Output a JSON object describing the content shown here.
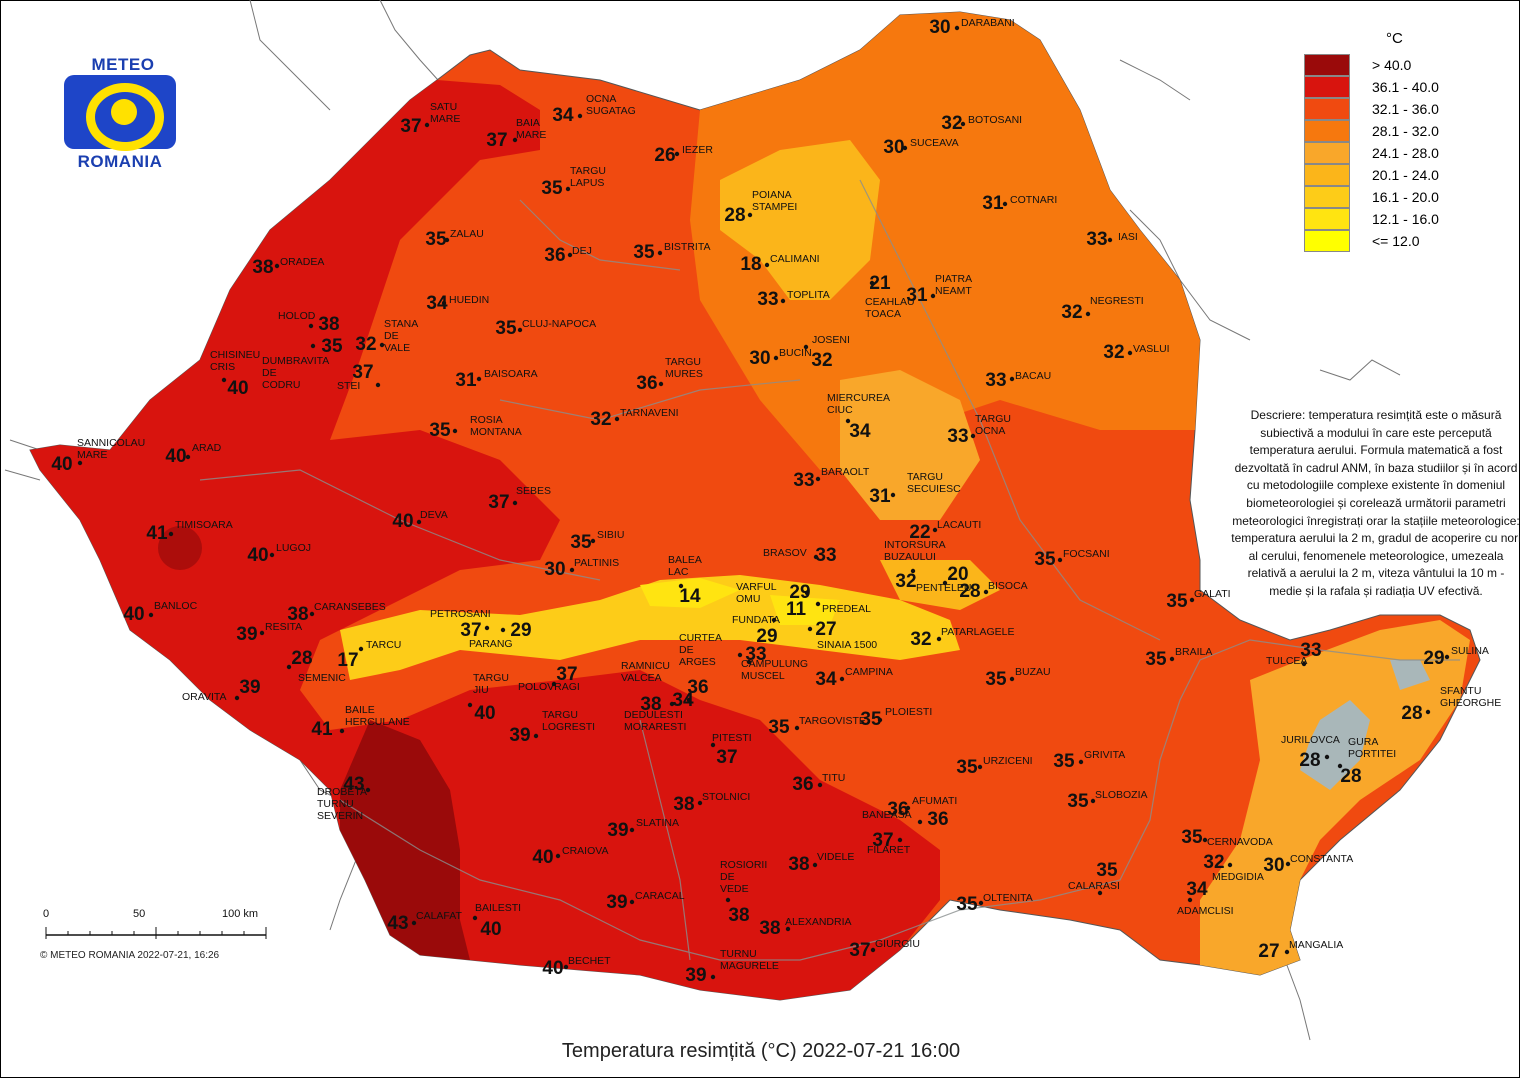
{
  "logo": {
    "top_text": "METEO",
    "bottom_text": "ROMANIA"
  },
  "legend": {
    "unit": "°C",
    "classes": [
      {
        "label": "> 40.0",
        "color": "#9a0a0a"
      },
      {
        "label": "36.1 - 40.0",
        "color": "#d8140e"
      },
      {
        "label": "32.1 - 36.0",
        "color": "#f04a10"
      },
      {
        "label": "28.1 - 32.0",
        "color": "#f6780e"
      },
      {
        "label": "24.1 - 28.0",
        "color": "#f9a72a"
      },
      {
        "label": "20.1 - 24.0",
        "color": "#fbb51a"
      },
      {
        "label": "16.1 - 20.0",
        "color": "#fdcc18"
      },
      {
        "label": "12.1 - 16.0",
        "color": "#ffe411"
      },
      {
        "label": "<= 12.0",
        "color": "#ffff00"
      }
    ]
  },
  "description": "Descriere: temperatura resimțită este o măsură subiectivă a modului în care este percepută temperatura aerului. Formula matematică a fost dezvoltată în cadrul ANM, în baza studiilor și în acord cu metodologiile complexe existente în domeniul biometeorologiei și corelează următorii parametri meteorologici înregistrați orar la stațiile meteorologice: temperatura aerului la 2 m, gradul de acoperire cu nori al cerului, fenomenele meteorologice, umezeala relativă a aerului la 2 m, viteza vântului la 10 m - medie și la rafala și radiația UV efectivă.",
  "scale": {
    "labels": [
      "0",
      "50",
      "100 km"
    ]
  },
  "copyright": "© METEO ROMANIA 2022-07-21, 16:26",
  "title": "Temperatura resimțită (°C) 2022-07-21 16:00",
  "stations": [
    {
      "name": "DARABANI",
      "value": "30"
    },
    {
      "name": "BOTOSANI",
      "value": "32"
    },
    {
      "name": "SUCEAVA",
      "value": "30"
    },
    {
      "name": "COTNARI",
      "value": "31"
    },
    {
      "name": "IASI",
      "value": "33"
    },
    {
      "name": "PIATRA NEAMT",
      "value": "31"
    },
    {
      "name": "NEGRESTI",
      "value": "32"
    },
    {
      "name": "VASLUI",
      "value": "32"
    },
    {
      "name": "BACAU",
      "value": "33"
    },
    {
      "name": "TARGU OCNA",
      "value": "33"
    },
    {
      "name": "SATU MARE",
      "value": "37"
    },
    {
      "name": "BAIA MARE",
      "value": "37"
    },
    {
      "name": "OCNA SUGATAG",
      "value": "34"
    },
    {
      "name": "IEZER",
      "value": "26"
    },
    {
      "name": "TARGU LAPUS",
      "value": "35"
    },
    {
      "name": "POIANA STAMPEI",
      "value": "28"
    },
    {
      "name": "ZALAU",
      "value": "35"
    },
    {
      "name": "DEJ",
      "value": "36"
    },
    {
      "name": "BISTRITA",
      "value": "35"
    },
    {
      "name": "CALIMANI",
      "value": "18"
    },
    {
      "name": "CEAHLAU TOACA",
      "value": "21"
    },
    {
      "name": "ORADEA",
      "value": "38"
    },
    {
      "name": "HUEDIN",
      "value": "34"
    },
    {
      "name": "TOPLITA",
      "value": "33"
    },
    {
      "name": "HOLOD",
      "value": "38"
    },
    {
      "name": "CLUJ-NAPOCA",
      "value": "35"
    },
    {
      "name": "DUMBRAVITA DE CODRU",
      "value": "35"
    },
    {
      "name": "STANA DE VALE",
      "value": "32"
    },
    {
      "name": "JOSENI",
      "value": "32"
    },
    {
      "name": "BUCIN",
      "value": "30"
    },
    {
      "name": "CHISINEU CRIS",
      "value": "40"
    },
    {
      "name": "STEI",
      "value": "37"
    },
    {
      "name": "BAISOARA",
      "value": "31"
    },
    {
      "name": "TARGU MURES",
      "value": "36"
    },
    {
      "name": "MIERCUREA CIUC",
      "value": "34"
    },
    {
      "name": "TARNAVENI",
      "value": "32"
    },
    {
      "name": "ROSIA MONTANA",
      "value": "35"
    },
    {
      "name": "SANNICOLAU MARE",
      "value": "40"
    },
    {
      "name": "ARAD",
      "value": "40"
    },
    {
      "name": "BARAOLT",
      "value": "33"
    },
    {
      "name": "TARGU SECUIESC",
      "value": "31"
    },
    {
      "name": "SEBES",
      "value": "37"
    },
    {
      "name": "DEVA",
      "value": "40"
    },
    {
      "name": "LACAUTI",
      "value": "22"
    },
    {
      "name": "TIMISOARA",
      "value": "41"
    },
    {
      "name": "SIBIU",
      "value": "35"
    },
    {
      "name": "BRASOV",
      "value": "33"
    },
    {
      "name": "LUGOJ",
      "value": "40"
    },
    {
      "name": "INTORSURA BUZAULUI",
      "value": "32"
    },
    {
      "name": "PENTELEU",
      "value": "20"
    },
    {
      "name": "FOCSANI",
      "value": "35"
    },
    {
      "name": "PALTINIS",
      "value": "30"
    },
    {
      "name": "BALEA LAC",
      "value": "14"
    },
    {
      "name": "VARFUL OMU",
      "value": "29"
    },
    {
      "name": "BISOCA",
      "value": "28"
    },
    {
      "name": "GALATI",
      "value": "35"
    },
    {
      "name": "BANLOC",
      "value": "40"
    },
    {
      "name": "CARANSEBES",
      "value": "38"
    },
    {
      "name": "PREDEAL",
      "value": "11"
    },
    {
      "name": "PETROSANI",
      "value": "37"
    },
    {
      "name": "PARANG",
      "value": "29"
    },
    {
      "name": "FUNDATA",
      "value": "29"
    },
    {
      "name": "SINAIA 1500",
      "value": "27"
    },
    {
      "name": "PATARLAGELE",
      "value": "32"
    },
    {
      "name": "RESITA",
      "value": "39"
    },
    {
      "name": "TULCEA",
      "value": "33"
    },
    {
      "name": "SULINA",
      "value": "29"
    },
    {
      "name": "TARCU",
      "value": "17"
    },
    {
      "name": "SEMENIC",
      "value": "28"
    },
    {
      "name": "CURTEA DE ARGES",
      "value": "33"
    },
    {
      "name": "BRAILA",
      "value": "35"
    },
    {
      "name": "POLOVRAGI",
      "value": "37"
    },
    {
      "name": "CAMPULUNG MUSCEL",
      "value": "36"
    },
    {
      "name": "CAMPINA",
      "value": "34"
    },
    {
      "name": "BUZAU",
      "value": "35"
    },
    {
      "name": "ORAVITA",
      "value": "39"
    },
    {
      "name": "TARGU JIU",
      "value": "40"
    },
    {
      "name": "RAMNICU VALCEA",
      "value": "38"
    },
    {
      "name": "SFANTU GHEORGHE",
      "value": "28"
    },
    {
      "name": "DEDULESTI MORARESTI",
      "value": "34"
    },
    {
      "name": "TARGOVISTE",
      "value": "35"
    },
    {
      "name": "PLOIESTI",
      "value": "35"
    },
    {
      "name": "BAILE HERCULANE",
      "value": "41"
    },
    {
      "name": "TARGU LOGRESTI",
      "value": "39"
    },
    {
      "name": "PITESTI",
      "value": "37"
    },
    {
      "name": "JURILOVCA",
      "value": "28"
    },
    {
      "name": "GURA PORTITEI",
      "value": "28"
    },
    {
      "name": "GRIVITA",
      "value": "35"
    },
    {
      "name": "URZICENI",
      "value": "35"
    },
    {
      "name": "DROBETA TURNU SEVERIN",
      "value": "43"
    },
    {
      "name": "TITU",
      "value": "36"
    },
    {
      "name": "SLOBOZIA",
      "value": "35"
    },
    {
      "name": "STOLNICI",
      "value": "38"
    },
    {
      "name": "AFUMATI",
      "value": "36"
    },
    {
      "name": "BANEASA",
      "value": "36"
    },
    {
      "name": "SLATINA",
      "value": "39"
    },
    {
      "name": "FILARET",
      "value": "37"
    },
    {
      "name": "CERNAVODA",
      "value": "35"
    },
    {
      "name": "CRAIOVA",
      "value": "40"
    },
    {
      "name": "VIDELE",
      "value": "38"
    },
    {
      "name": "MEDGIDIA",
      "value": "32"
    },
    {
      "name": "CONSTANTA",
      "value": "30"
    },
    {
      "name": "CALARASI",
      "value": "35"
    },
    {
      "name": "ROSIORII DE VEDE",
      "value": "38"
    },
    {
      "name": "ADAMCLISI",
      "value": "34"
    },
    {
      "name": "CARACAL",
      "value": "39"
    },
    {
      "name": "OLTENITA",
      "value": "35"
    },
    {
      "name": "CALAFAT",
      "value": "43"
    },
    {
      "name": "BAILESTI",
      "value": "40"
    },
    {
      "name": "ALEXANDRIA",
      "value": "38"
    },
    {
      "name": "GIURGIU",
      "value": "37"
    },
    {
      "name": "MANGALIA",
      "value": "27"
    },
    {
      "name": "BECHET",
      "value": "40"
    },
    {
      "name": "TURNU MAGURELE",
      "value": "39"
    }
  ]
}
